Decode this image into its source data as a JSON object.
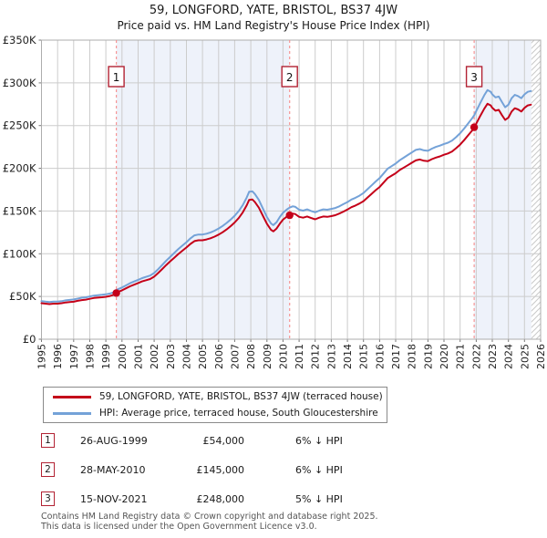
{
  "page": {
    "title": "59, LONGFORD, YATE, BRISTOL, BS37 4JW",
    "subtitle": "Price paid vs. HM Land Registry's House Price Index (HPI)"
  },
  "chart_data": {
    "type": "line",
    "title": "59, LONGFORD, YATE, BRISTOL, BS37 4JW",
    "subtitle": "Price paid vs. HM Land Registry's House Price Index (HPI)",
    "xlabel": "",
    "ylabel": "",
    "xlim": [
      1995,
      2026
    ],
    "ylim": [
      0,
      350000
    ],
    "grid": true,
    "x_ticks": [
      1995,
      1996,
      1997,
      1998,
      1999,
      2000,
      2001,
      2002,
      2003,
      2004,
      2005,
      2006,
      2007,
      2008,
      2009,
      2010,
      2011,
      2012,
      2013,
      2014,
      2015,
      2016,
      2017,
      2018,
      2019,
      2020,
      2021,
      2022,
      2023,
      2024,
      2025,
      2026
    ],
    "y_ticks": [
      {
        "v": 0,
        "label": "£0"
      },
      {
        "v": 50000,
        "label": "£50K"
      },
      {
        "v": 100000,
        "label": "£100K"
      },
      {
        "v": 150000,
        "label": "£150K"
      },
      {
        "v": 200000,
        "label": "£200K"
      },
      {
        "v": 250000,
        "label": "£250K"
      },
      {
        "v": 300000,
        "label": "£300K"
      },
      {
        "v": 350000,
        "label": "£350K"
      }
    ],
    "x": [
      1995,
      1995.25,
      1995.5,
      1995.75,
      1996,
      1996.25,
      1996.5,
      1996.75,
      1997,
      1997.25,
      1997.5,
      1997.75,
      1998,
      1998.25,
      1998.5,
      1998.75,
      1999,
      1999.25,
      1999.5,
      1999.65,
      1999.75,
      2000,
      2000.25,
      2000.5,
      2000.75,
      2001,
      2001.25,
      2001.5,
      2001.75,
      2002,
      2002.25,
      2002.5,
      2002.75,
      2003,
      2003.25,
      2003.5,
      2003.75,
      2004,
      2004.25,
      2004.5,
      2004.75,
      2005,
      2005.25,
      2005.5,
      2005.75,
      2006,
      2006.25,
      2006.5,
      2006.75,
      2007,
      2007.25,
      2007.5,
      2007.75,
      2007.9,
      2008.1,
      2008.25,
      2008.5,
      2008.75,
      2009,
      2009.25,
      2009.4,
      2009.6,
      2009.8,
      2010,
      2010.25,
      2010.41,
      2010.6,
      2010.75,
      2011,
      2011.25,
      2011.5,
      2011.75,
      2012,
      2012.25,
      2012.5,
      2012.75,
      2013,
      2013.25,
      2013.5,
      2013.75,
      2014,
      2014.25,
      2014.5,
      2014.75,
      2015,
      2015.25,
      2015.5,
      2015.75,
      2016,
      2016.25,
      2016.5,
      2016.75,
      2017,
      2017.25,
      2017.5,
      2017.75,
      2018,
      2018.25,
      2018.5,
      2018.75,
      2019,
      2019.25,
      2019.5,
      2019.75,
      2020,
      2020.25,
      2020.5,
      2020.75,
      2021,
      2021.25,
      2021.5,
      2021.75,
      2021.87,
      2022,
      2022.25,
      2022.5,
      2022.7,
      2022.9,
      2023,
      2023.2,
      2023.4,
      2023.6,
      2023.8,
      2024,
      2024.2,
      2024.4,
      2024.6,
      2024.8,
      2025,
      2025.2,
      2025.4
    ],
    "series": [
      {
        "name": "59, LONGFORD, YATE, BRISTOL, BS37 4JW (terraced house)",
        "color": "#c40019",
        "values": [
          42100,
          41600,
          41100,
          41600,
          41600,
          42100,
          43000,
          43500,
          43900,
          44900,
          45800,
          46300,
          47300,
          48200,
          48700,
          49100,
          49600,
          50600,
          52000,
          54000,
          55300,
          57200,
          59500,
          61900,
          63800,
          65700,
          67600,
          69000,
          70400,
          73200,
          77500,
          82200,
          86900,
          91200,
          95400,
          99700,
          103500,
          107300,
          111500,
          114800,
          115800,
          115800,
          116700,
          118100,
          120000,
          122400,
          125200,
          128500,
          132300,
          136600,
          141800,
          148400,
          156900,
          163000,
          163500,
          160700,
          154000,
          144600,
          135100,
          128000,
          126200,
          129500,
          135100,
          139900,
          143600,
          145000,
          147000,
          146500,
          143200,
          142200,
          143600,
          141800,
          140300,
          142200,
          143600,
          143200,
          144100,
          145100,
          147000,
          149300,
          151700,
          154500,
          156400,
          158800,
          161600,
          165800,
          170100,
          174400,
          178100,
          183300,
          188500,
          191400,
          194200,
          198000,
          200800,
          203600,
          206500,
          209300,
          210300,
          208800,
          208400,
          210700,
          212600,
          214000,
          215900,
          217400,
          219700,
          223500,
          227700,
          232900,
          238600,
          244300,
          248000,
          252300,
          261300,
          269800,
          275500,
          273600,
          270700,
          267400,
          268400,
          262200,
          256600,
          259400,
          266500,
          270300,
          268900,
          266500,
          270700,
          273600,
          274500
        ]
      },
      {
        "name": "HPI: Average price, terraced house, South Gloucestershire",
        "color": "#74a2d8",
        "values": [
          44500,
          44000,
          43500,
          44000,
          44000,
          44500,
          45500,
          46000,
          46500,
          47500,
          48500,
          49000,
          50000,
          51000,
          51500,
          52000,
          52500,
          53500,
          55000,
          57500,
          58500,
          60500,
          63000,
          65500,
          67500,
          69500,
          71500,
          73000,
          74500,
          77500,
          82000,
          87000,
          92000,
          96500,
          101000,
          105500,
          109500,
          113500,
          118000,
          121500,
          122500,
          122500,
          123500,
          125000,
          127000,
          129500,
          132500,
          136000,
          140000,
          144500,
          150000,
          157000,
          166000,
          172500,
          173000,
          170000,
          163000,
          153000,
          143000,
          135500,
          133500,
          137000,
          143000,
          148000,
          152000,
          154000,
          155500,
          155000,
          151500,
          150500,
          152000,
          150000,
          148500,
          150500,
          152000,
          151500,
          152500,
          153500,
          155500,
          158000,
          160500,
          163500,
          165500,
          168000,
          171000,
          175500,
          180000,
          184500,
          188500,
          194000,
          199500,
          202500,
          205500,
          209500,
          212500,
          215500,
          218500,
          221500,
          222500,
          221000,
          220500,
          223000,
          225000,
          226500,
          228500,
          230000,
          232500,
          236500,
          241000,
          246500,
          252500,
          258500,
          262000,
          267000,
          276500,
          285500,
          291500,
          289500,
          286500,
          283000,
          284000,
          277500,
          271500,
          274500,
          282000,
          286000,
          284500,
          282000,
          286500,
          289500,
          290500
        ]
      }
    ],
    "sales": [
      {
        "n": "1",
        "x": 1999.65,
        "price": 54000,
        "date": "26-AUG-1999"
      },
      {
        "n": "2",
        "x": 2010.41,
        "price": 145000,
        "date": "28-MAY-2010"
      },
      {
        "n": "3",
        "x": 2021.87,
        "price": 248000,
        "date": "15-NOV-2021"
      }
    ],
    "shaded_regions": [
      [
        1999.65,
        2010.41
      ],
      [
        2021.87,
        2025.42
      ]
    ],
    "hatch_region": [
      2025.42,
      2026
    ],
    "legend_position": "bottom",
    "colors": {
      "shade": "#eef2fa",
      "grid": "#cccccc",
      "frame": "#adadad",
      "tick": "#777777",
      "sale_line": "#f79595",
      "marker_box_border": "#b22233",
      "sale_dot": "#c40019",
      "hatch": "#c9c9c9",
      "axis_text": "#222222"
    }
  },
  "legend": {
    "items": [
      {
        "label": "59, LONGFORD, YATE, BRISTOL, BS37 4JW (terraced house)",
        "color": "#c40019"
      },
      {
        "label": "HPI: Average price, terraced house, South Gloucestershire",
        "color": "#74a2d8"
      }
    ]
  },
  "table": {
    "rows": [
      {
        "n": "1",
        "date": "26-AUG-1999",
        "price": "£54,000",
        "hpi": "6% ↓ HPI"
      },
      {
        "n": "2",
        "date": "28-MAY-2010",
        "price": "£145,000",
        "hpi": "6% ↓ HPI"
      },
      {
        "n": "3",
        "date": "15-NOV-2021",
        "price": "£248,000",
        "hpi": "5% ↓ HPI"
      }
    ]
  },
  "footer": {
    "line1": "Contains HM Land Registry data © Crown copyright and database right 2025.",
    "line2": "This data is licensed under the Open Government Licence v3.0."
  }
}
